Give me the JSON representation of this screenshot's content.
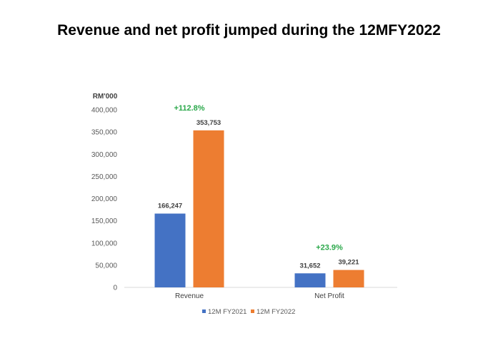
{
  "chart_data": {
    "type": "bar",
    "title": "Revenue and net profit jumped during the 12MFY2022",
    "ylabel": "RM'000",
    "categories": [
      "Revenue",
      "Net Profit"
    ],
    "series": [
      {
        "name": "12M FY2021",
        "color": "#4472C4",
        "values": [
          166247,
          31652
        ],
        "labels": [
          "166,247",
          "31,652"
        ]
      },
      {
        "name": "12M FY2022",
        "color": "#ED7D31",
        "values": [
          353753,
          39221
        ],
        "labels": [
          "353,753",
          "39,221"
        ]
      }
    ],
    "annotations": [
      "+112.8%",
      "+23.9%"
    ],
    "annotation_color": "#2AA84A",
    "ylim": [
      0,
      400000
    ],
    "yticks": [
      0,
      50000,
      100000,
      150000,
      200000,
      250000,
      300000,
      350000,
      400000
    ],
    "ytick_labels": [
      "0",
      "50,000",
      "100,000",
      "150,000",
      "200,000",
      "250,000",
      "300,000",
      "350,000",
      "400,000"
    ],
    "grid": false,
    "legend": "bottom"
  }
}
